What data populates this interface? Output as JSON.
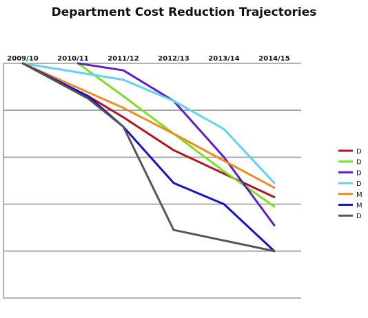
{
  "chart_data": {
    "type": "line",
    "title": "Department Cost Reduction Trajectories",
    "xlabel": "",
    "ylabel": "",
    "categories": [
      "2009/10",
      "2010/11",
      "2011/12",
      "2012/13",
      "2013/14",
      "2014/15"
    ],
    "ylim": [
      0,
      100
    ],
    "y_tick_values": [
      0,
      20,
      40,
      60,
      80,
      100
    ],
    "grid": "horizontal",
    "legend_position": "right",
    "series": [
      {
        "name": "D",
        "color": "#b5121b",
        "points": [
          [
            0,
            100
          ],
          [
            1.3,
            86
          ],
          [
            2,
            77
          ],
          [
            3,
            63
          ],
          [
            4,
            53
          ],
          [
            5,
            43
          ]
        ]
      },
      {
        "name": "D",
        "color": "#77e21f",
        "points": [
          [
            1.1,
            100
          ],
          [
            2,
            86
          ],
          [
            3,
            70
          ],
          [
            4,
            54
          ],
          [
            5,
            39
          ]
        ]
      },
      {
        "name": "D",
        "color": "#5b1ec8",
        "points": [
          [
            1.1,
            100
          ],
          [
            2,
            97
          ],
          [
            3,
            84
          ],
          [
            4,
            60
          ],
          [
            5,
            31
          ]
        ]
      },
      {
        "name": "D",
        "color": "#5fd3f3",
        "points": [
          [
            0,
            100
          ],
          [
            2,
            93
          ],
          [
            3,
            84
          ],
          [
            4,
            72
          ],
          [
            5,
            49
          ]
        ]
      },
      {
        "name": "M",
        "color": "#f28a1e",
        "points": [
          [
            0,
            100
          ],
          [
            2,
            81
          ],
          [
            3,
            70
          ],
          [
            5,
            47
          ]
        ]
      },
      {
        "name": "M",
        "color": "#1212cc",
        "points": [
          [
            0,
            100
          ],
          [
            1.3,
            86
          ],
          [
            2,
            73
          ],
          [
            3,
            49
          ],
          [
            4,
            40
          ],
          [
            5,
            20
          ]
        ]
      },
      {
        "name": "D",
        "color": "#555555",
        "points": [
          [
            0,
            100
          ],
          [
            1.3,
            85
          ],
          [
            2,
            73
          ],
          [
            3,
            29
          ],
          [
            5,
            20
          ]
        ]
      }
    ]
  }
}
